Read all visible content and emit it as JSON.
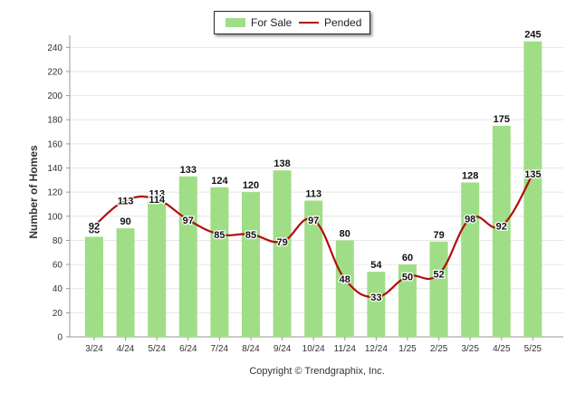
{
  "chart_data": {
    "type": "bar",
    "ylabel": "Number of Homes",
    "xlabel": "",
    "ylim": [
      0,
      250
    ],
    "yticks": [
      0,
      20,
      40,
      60,
      80,
      100,
      120,
      140,
      160,
      180,
      200,
      220,
      240
    ],
    "grid": true,
    "legend_position": "top-center",
    "categories": [
      "3/24",
      "4/24",
      "5/24",
      "6/24",
      "7/24",
      "8/24",
      "9/24",
      "10/24",
      "11/24",
      "12/24",
      "1/25",
      "2/25",
      "3/25",
      "4/25",
      "5/25"
    ],
    "series": [
      {
        "name": "For Sale",
        "type": "bar",
        "color": "#9fde87",
        "values": [
          83,
          90,
          113,
          133,
          124,
          120,
          138,
          113,
          80,
          54,
          60,
          79,
          128,
          175,
          245
        ]
      },
      {
        "name": "Pended",
        "type": "line",
        "color": "#b10d0d",
        "values": [
          92,
          113,
          114,
          97,
          85,
          85,
          79,
          97,
          48,
          33,
          50,
          52,
          98,
          92,
          135
        ]
      }
    ],
    "footer": "Copyright © Trendgraphix, Inc."
  }
}
